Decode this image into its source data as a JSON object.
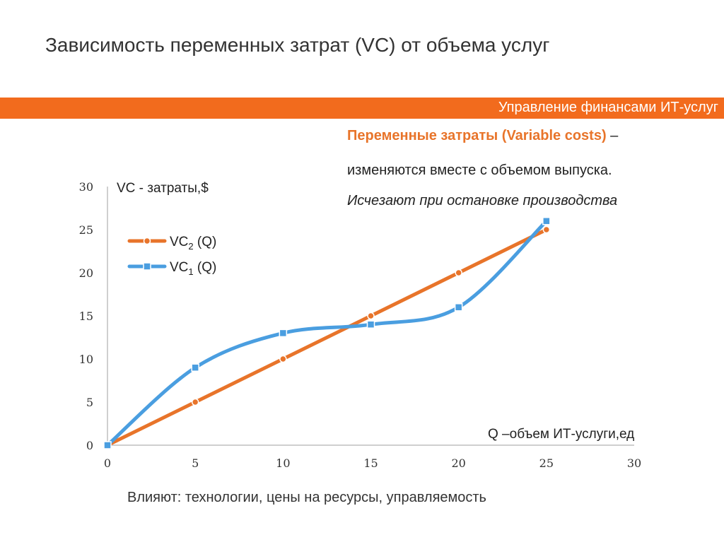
{
  "slide": {
    "title": "Зависимость переменных затрат (VC) от объема услуг",
    "banner": "Управление финансами ИТ-услуг",
    "definition_term": "Переменные затраты (Variable costs)",
    "definition_dash": " –",
    "definition_line2": "изменяются вместе с объемом выпуска.",
    "definition_line3": "Исчезают при остановке производства",
    "footer": "Влияют: технологии, цены на ресурсы, управляемость"
  },
  "colors": {
    "banner": "#f26b1d",
    "vc2": "#e8742a",
    "vc1": "#4a9ee0",
    "axis": "#bfbfbf"
  },
  "chart_data": {
    "type": "line",
    "ylabel": "VC - затраты,$",
    "xlabel": "Q –объем ИТ-услуги,ед",
    "xlim": [
      0,
      30
    ],
    "ylim": [
      0,
      30
    ],
    "x_ticks": [
      "0",
      "5",
      "10",
      "15",
      "20",
      "25",
      "30"
    ],
    "y_ticks": [
      "0",
      "5",
      "10",
      "15",
      "20",
      "25",
      "30"
    ],
    "grid": false,
    "legend": "top-left",
    "series": [
      {
        "key": "vc2",
        "name_base": "VC",
        "name_sub": "2",
        "name_rest": " (Q)",
        "marker": "circle",
        "x": [
          0,
          5,
          10,
          15,
          20,
          25
        ],
        "y": [
          0,
          5,
          10,
          15,
          20,
          25
        ]
      },
      {
        "key": "vc1",
        "name_base": "VC",
        "name_sub": "1",
        "name_rest": " (Q)",
        "marker": "square",
        "x": [
          0,
          5,
          10,
          15,
          20,
          25
        ],
        "y": [
          0,
          9,
          13,
          14,
          16,
          26
        ]
      }
    ]
  }
}
